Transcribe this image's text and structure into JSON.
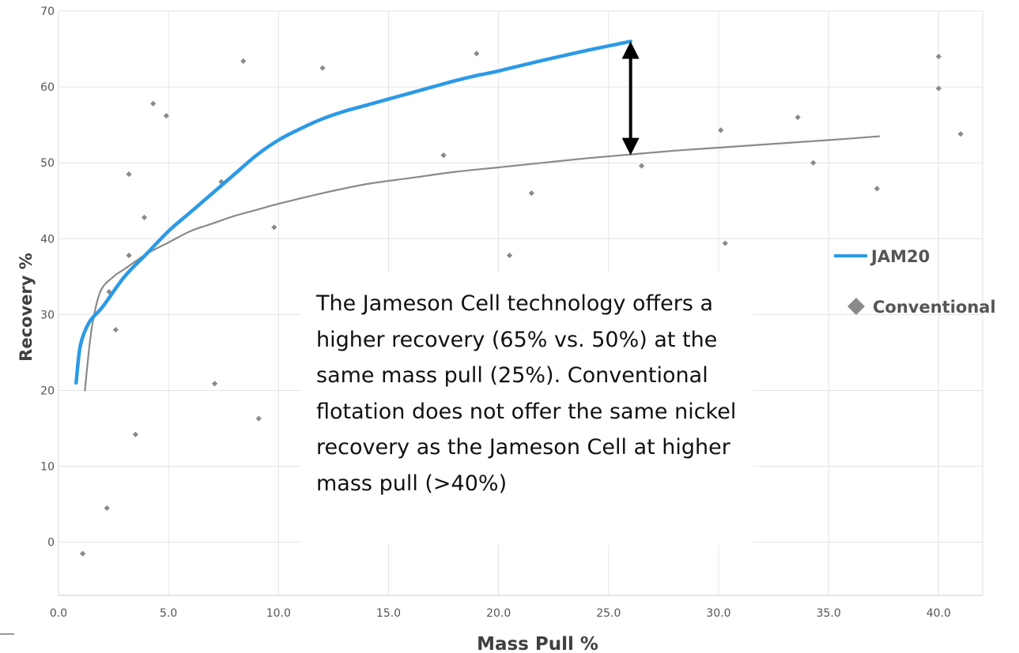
{
  "chart_data": {
    "type": "line",
    "title": "",
    "xlabel": "Mass Pull %",
    "ylabel": "Recovery %",
    "xlim": [
      0,
      42
    ],
    "ylim": [
      -7,
      70
    ],
    "x_ticks": [
      "0.0",
      "5.0",
      "10.0",
      "15.0",
      "20.0",
      "25.0",
      "30.0",
      "35.0",
      "40.0"
    ],
    "y_ticks": [
      "0",
      "10",
      "20",
      "30",
      "40",
      "50",
      "60",
      "70"
    ],
    "grid": true,
    "legend_position": "right",
    "series": [
      {
        "name": "JAM20",
        "type": "line",
        "color": "#2b9ae6",
        "x": [
          0.8,
          1.0,
          1.4,
          2.0,
          3.0,
          4.0,
          5.0,
          6.0,
          7.0,
          8.0,
          9.0,
          10.0,
          11.0,
          12.0,
          13.0,
          14.0,
          15.0,
          16.0,
          17.0,
          18.0,
          19.0,
          20.0,
          22.0,
          24.0,
          26.0
        ],
        "y": [
          21,
          26,
          29,
          31,
          35,
          38,
          41,
          43.5,
          46,
          48.5,
          51,
          53,
          54.5,
          55.8,
          56.8,
          57.6,
          58.4,
          59.2,
          60,
          60.8,
          61.5,
          62.1,
          63.5,
          64.8,
          66
        ]
      },
      {
        "name": "Conventional",
        "type": "trendline",
        "color": "#8a8a8a",
        "x": [
          1.2,
          1.5,
          1.9,
          2.5,
          3.0,
          4.0,
          5.0,
          6.0,
          7.0,
          8.0,
          9.0,
          10.0,
          12.0,
          14.0,
          16.0,
          18.0,
          20.0,
          22.0,
          24.0,
          26.0,
          28.0,
          30.0,
          32.0,
          34.0,
          36.0,
          37.3
        ],
        "y": [
          20,
          28,
          33,
          35,
          36,
          38,
          39.5,
          41,
          42,
          43,
          43.8,
          44.6,
          46,
          47.2,
          48,
          48.8,
          49.4,
          50,
          50.6,
          51.1,
          51.6,
          52,
          52.4,
          52.8,
          53.2,
          53.5
        ]
      }
    ],
    "scatter": {
      "name": "Conventional",
      "color": "#8a8a8a",
      "points": [
        [
          1.1,
          -1.5
        ],
        [
          2.2,
          4.5
        ],
        [
          2.3,
          33
        ],
        [
          2.6,
          28
        ],
        [
          3.2,
          48.5
        ],
        [
          3.2,
          37.8
        ],
        [
          3.5,
          14.2
        ],
        [
          3.9,
          42.8
        ],
        [
          4.3,
          57.8
        ],
        [
          4.9,
          56.2
        ],
        [
          7.1,
          20.9
        ],
        [
          7.4,
          47.5
        ],
        [
          8.4,
          63.4
        ],
        [
          9.1,
          16.3
        ],
        [
          9.8,
          41.5
        ],
        [
          12.0,
          62.5
        ],
        [
          17.5,
          51
        ],
        [
          19.0,
          64.4
        ],
        [
          20.5,
          37.8
        ],
        [
          21.5,
          46
        ],
        [
          26.5,
          49.6
        ],
        [
          30.1,
          54.3
        ],
        [
          30.3,
          39.4
        ],
        [
          33.6,
          56
        ],
        [
          34.3,
          50
        ],
        [
          37.2,
          46.6
        ],
        [
          40.0,
          64
        ],
        [
          40.0,
          59.8
        ],
        [
          41.0,
          53.8
        ]
      ]
    },
    "annotations": [
      {
        "type": "double-arrow",
        "x": 26.0,
        "y_from": 51,
        "y_to": 66
      }
    ]
  },
  "annotation": {
    "text": "The Jameson Cell technology offers a higher recovery (65% vs. 50%) at the same mass pull (25%). Conventional flotation does not offer the same nickel recovery as the Jameson Cell at higher mass pull (>40%)"
  },
  "legend": {
    "items": [
      {
        "label": "JAM20",
        "marker": "line",
        "color": "#2b9ae6"
      },
      {
        "label": "Conventional",
        "marker": "diamond",
        "color": "#8a8a8a"
      }
    ]
  }
}
